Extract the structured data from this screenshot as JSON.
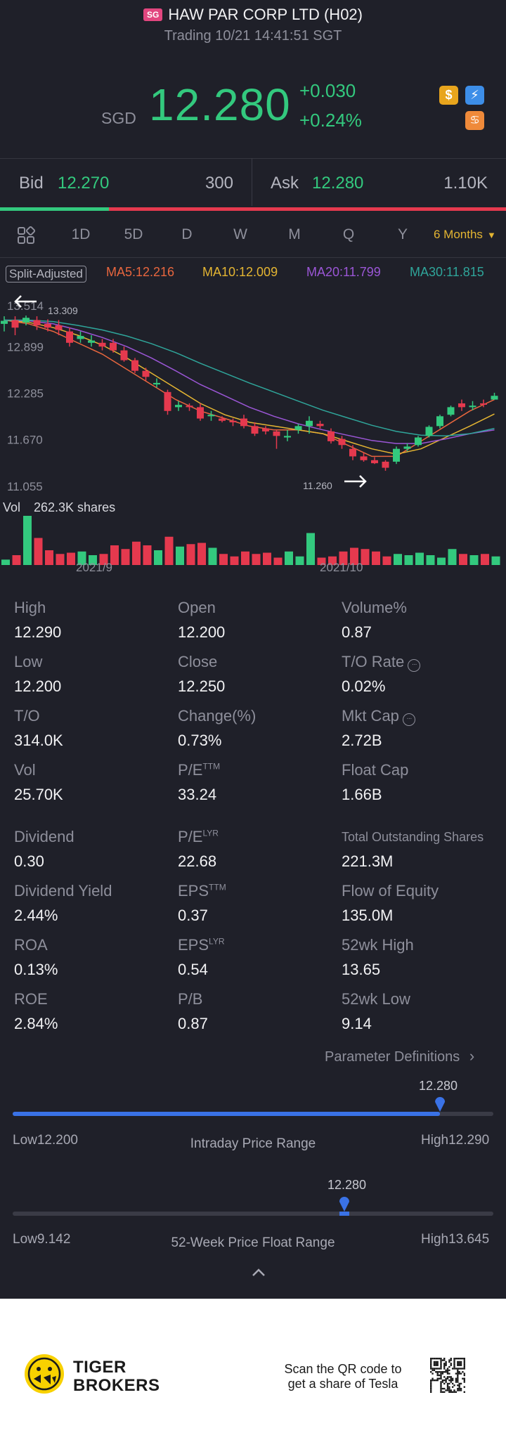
{
  "header": {
    "market_badge": "SG",
    "stock_name": "HAW PAR CORP LTD (H02)",
    "status": "Trading 10/21 14:41:51 SGT",
    "currency": "SGD",
    "price": "12.280",
    "change": "+0.030",
    "change_pct": "+0.24%"
  },
  "icons": [
    "dollar-icon",
    "lightning-icon",
    "options-icon",
    "info-icon",
    "chevron-right-icon",
    "chevron-up-icon",
    "arrow-left-icon",
    "arrow-right-icon",
    "tiger-logo-icon",
    "qr-code-icon"
  ],
  "colors": {
    "up": "#33c97e",
    "down": "#e5394e",
    "accent": "#e4b532",
    "bg": "#1f2029",
    "range_bar": "#3a72e6"
  },
  "quote": {
    "bid_label": "Bid",
    "bid_price": "12.270",
    "bid_qty": "300",
    "ask_label": "Ask",
    "ask_price": "12.280",
    "ask_qty": "1.10K"
  },
  "tabs": {
    "items": [
      "1D",
      "5D",
      "D",
      "W",
      "M",
      "Q",
      "Y"
    ],
    "active": "6 Months"
  },
  "chart_legend": {
    "adjustment": "Split-Adjusted",
    "ma5": "MA5:12.216",
    "ma10": "MA10:12.009",
    "ma20": "MA20:11.799",
    "ma30": "MA30:11.815"
  },
  "chart_data": {
    "type": "candlestick",
    "y_ticks": [
      "13.514",
      "12.899",
      "12.285",
      "11.670",
      "11.055"
    ],
    "ylim": [
      11.055,
      13.514
    ],
    "max_label": "13.309",
    "min_label": "11.260",
    "volume_label": "Vol",
    "volume_value": "262.3K shares",
    "x_ticks": [
      "2021/9",
      "2021/10"
    ],
    "candles": [
      {
        "o": 13.2,
        "c": 13.24,
        "h": 13.3,
        "l": 13.1
      },
      {
        "o": 13.25,
        "c": 13.15,
        "h": 13.3,
        "l": 13.05
      },
      {
        "o": 13.22,
        "c": 13.28,
        "h": 13.31,
        "l": 13.18
      },
      {
        "o": 13.25,
        "c": 13.18,
        "h": 13.3,
        "l": 13.12
      },
      {
        "o": 13.2,
        "c": 13.15,
        "h": 13.26,
        "l": 13.1
      },
      {
        "o": 13.18,
        "c": 13.12,
        "h": 13.25,
        "l": 13.05
      },
      {
        "o": 13.1,
        "c": 12.95,
        "h": 13.15,
        "l": 12.9
      },
      {
        "o": 13.0,
        "c": 13.04,
        "h": 13.1,
        "l": 12.95
      },
      {
        "o": 12.95,
        "c": 12.98,
        "h": 13.05,
        "l": 12.9
      },
      {
        "o": 12.95,
        "c": 12.9,
        "h": 13.0,
        "l": 12.85
      },
      {
        "o": 12.95,
        "c": 12.85,
        "h": 13.0,
        "l": 12.82
      },
      {
        "o": 12.85,
        "c": 12.72,
        "h": 12.9,
        "l": 12.7
      },
      {
        "o": 12.72,
        "c": 12.58,
        "h": 12.75,
        "l": 12.55
      },
      {
        "o": 12.58,
        "c": 12.5,
        "h": 12.62,
        "l": 12.45
      },
      {
        "o": 12.4,
        "c": 12.42,
        "h": 12.48,
        "l": 12.36
      },
      {
        "o": 12.3,
        "c": 12.05,
        "h": 12.33,
        "l": 12.0
      },
      {
        "o": 12.1,
        "c": 12.13,
        "h": 12.18,
        "l": 12.05
      },
      {
        "o": 12.12,
        "c": 12.1,
        "h": 12.15,
        "l": 12.05
      },
      {
        "o": 12.1,
        "c": 11.95,
        "h": 12.15,
        "l": 11.92
      },
      {
        "o": 11.98,
        "c": 12.0,
        "h": 12.05,
        "l": 11.92
      },
      {
        "o": 11.95,
        "c": 11.92,
        "h": 11.98,
        "l": 11.9
      },
      {
        "o": 11.92,
        "c": 11.9,
        "h": 11.95,
        "l": 11.85
      },
      {
        "o": 11.95,
        "c": 11.85,
        "h": 12.0,
        "l": 11.82
      },
      {
        "o": 11.85,
        "c": 11.75,
        "h": 11.9,
        "l": 11.72
      },
      {
        "o": 11.82,
        "c": 11.78,
        "h": 11.85,
        "l": 11.74
      },
      {
        "o": 11.78,
        "c": 11.72,
        "h": 11.8,
        "l": 11.55
      },
      {
        "o": 11.7,
        "c": 11.72,
        "h": 11.8,
        "l": 11.65
      },
      {
        "o": 11.8,
        "c": 11.85,
        "h": 11.88,
        "l": 11.75
      },
      {
        "o": 11.85,
        "c": 11.92,
        "h": 11.98,
        "l": 11.75
      },
      {
        "o": 11.88,
        "c": 11.85,
        "h": 11.92,
        "l": 11.82
      },
      {
        "o": 11.78,
        "c": 11.65,
        "h": 11.82,
        "l": 11.62
      },
      {
        "o": 11.68,
        "c": 11.6,
        "h": 11.72,
        "l": 11.55
      },
      {
        "o": 11.55,
        "c": 11.45,
        "h": 11.6,
        "l": 11.4
      },
      {
        "o": 11.45,
        "c": 11.4,
        "h": 11.5,
        "l": 11.38
      },
      {
        "o": 11.4,
        "c": 11.36,
        "h": 11.44,
        "l": 11.35
      },
      {
        "o": 11.38,
        "c": 11.3,
        "h": 11.4,
        "l": 11.26
      },
      {
        "o": 11.38,
        "c": 11.55,
        "h": 11.58,
        "l": 11.35
      },
      {
        "o": 11.55,
        "c": 11.58,
        "h": 11.62,
        "l": 11.52
      },
      {
        "o": 11.6,
        "c": 11.7,
        "h": 11.72,
        "l": 11.58
      },
      {
        "o": 11.72,
        "c": 11.84,
        "h": 11.86,
        "l": 11.7
      },
      {
        "o": 11.85,
        "c": 11.98,
        "h": 12.0,
        "l": 11.82
      },
      {
        "o": 12.0,
        "c": 12.1,
        "h": 12.12,
        "l": 11.98
      },
      {
        "o": 12.15,
        "c": 12.1,
        "h": 12.2,
        "l": 12.05
      },
      {
        "o": 12.1,
        "c": 12.12,
        "h": 12.18,
        "l": 12.06
      },
      {
        "o": 12.15,
        "c": 12.14,
        "h": 12.2,
        "l": 12.1
      },
      {
        "o": 12.2,
        "c": 12.25,
        "h": 12.29,
        "l": 12.2
      }
    ],
    "volumes": [
      22,
      40,
      200,
      110,
      60,
      45,
      50,
      55,
      40,
      45,
      80,
      65,
      95,
      80,
      60,
      115,
      75,
      85,
      90,
      70,
      45,
      35,
      55,
      45,
      50,
      30,
      55,
      35,
      130,
      30,
      35,
      55,
      70,
      65,
      55,
      35,
      45,
      40,
      50,
      40,
      30,
      65,
      45,
      40,
      45,
      35
    ],
    "moving_averages": [
      {
        "name": "MA5",
        "color": "#e8663e",
        "values": [
          13.25,
          13.2,
          13.1,
          12.95,
          12.8,
          12.6,
          12.4,
          12.2,
          12.05,
          11.95,
          11.85,
          11.8,
          11.8,
          11.75,
          11.6,
          11.45,
          11.45,
          11.65,
          11.85,
          12.05,
          12.2
        ]
      },
      {
        "name": "MA10",
        "color": "#e4b532",
        "values": [
          13.25,
          13.22,
          13.15,
          13.05,
          12.92,
          12.75,
          12.55,
          12.35,
          12.15,
          12.0,
          11.9,
          11.85,
          11.8,
          11.75,
          11.65,
          11.55,
          11.48,
          11.55,
          11.7,
          11.85,
          12.01
        ]
      },
      {
        "name": "MA20",
        "color": "#9b56d6",
        "values": [
          13.25,
          13.24,
          13.2,
          13.12,
          13.02,
          12.9,
          12.75,
          12.58,
          12.4,
          12.25,
          12.1,
          11.98,
          11.88,
          11.8,
          11.73,
          11.66,
          11.62,
          11.62,
          11.68,
          11.75,
          11.8
        ]
      },
      {
        "name": "MA30",
        "color": "#2fa59a",
        "values": [
          13.25,
          13.25,
          13.23,
          13.18,
          13.12,
          13.04,
          12.94,
          12.82,
          12.68,
          12.55,
          12.42,
          12.3,
          12.18,
          12.06,
          11.96,
          11.86,
          11.78,
          11.73,
          11.72,
          11.75,
          11.82
        ]
      }
    ]
  },
  "stats": [
    [
      {
        "label": "High",
        "value": "12.290"
      },
      {
        "label": "Open",
        "value": "12.200"
      },
      {
        "label": "Volume%",
        "value": "0.87"
      }
    ],
    [
      {
        "label": "Low",
        "value": "12.200"
      },
      {
        "label": "Close",
        "value": "12.250"
      },
      {
        "label": "T/O Rate",
        "value": "0.02%",
        "info": "···"
      }
    ],
    [
      {
        "label": "T/O",
        "value": "314.0K"
      },
      {
        "label": "Change(%)",
        "value": "0.73%"
      },
      {
        "label": "Mkt Cap",
        "value": "2.72B",
        "info": "···"
      }
    ],
    [
      {
        "label": "Vol",
        "value": "25.70K"
      },
      {
        "label": "P/E",
        "sup": "TTM",
        "value": "33.24"
      },
      {
        "label": "Float Cap",
        "value": "1.66B"
      }
    ],
    [
      {
        "label": "Dividend",
        "value": "0.30"
      },
      {
        "label": "P/E",
        "sup": "LYR",
        "value": "22.68"
      },
      {
        "label": "Total Outstanding Shares",
        "value": "221.3M"
      }
    ],
    [
      {
        "label": "Dividend Yield",
        "value": "2.44%"
      },
      {
        "label": "EPS",
        "sup": "TTM",
        "value": "0.37"
      },
      {
        "label": "Flow of Equity",
        "value": "135.0M"
      }
    ],
    [
      {
        "label": "ROA",
        "value": "0.13%"
      },
      {
        "label": "EPS",
        "sup": "LYR",
        "value": "0.54"
      },
      {
        "label": "52wk High",
        "value": "13.65"
      }
    ],
    [
      {
        "label": "ROE",
        "value": "2.84%"
      },
      {
        "label": "P/B",
        "value": "0.87"
      },
      {
        "label": "52wk Low",
        "value": "9.14"
      }
    ]
  ],
  "param_definitions": "Parameter Definitions",
  "intraday_range": {
    "current": "12.280",
    "low": "Low12.200",
    "high": "High12.290",
    "title": "Intraday Price Range",
    "position": 0.889
  },
  "week52_range": {
    "current": "12.280",
    "low": "Low9.142",
    "high": "High13.645",
    "title": "52-Week Price Float Range",
    "position": 0.69
  },
  "footer": {
    "brand_line1": "TIGER",
    "brand_line2": "BROKERS",
    "scan_line1": "Scan the QR code to",
    "scan_line2": "get a share of Tesla"
  }
}
